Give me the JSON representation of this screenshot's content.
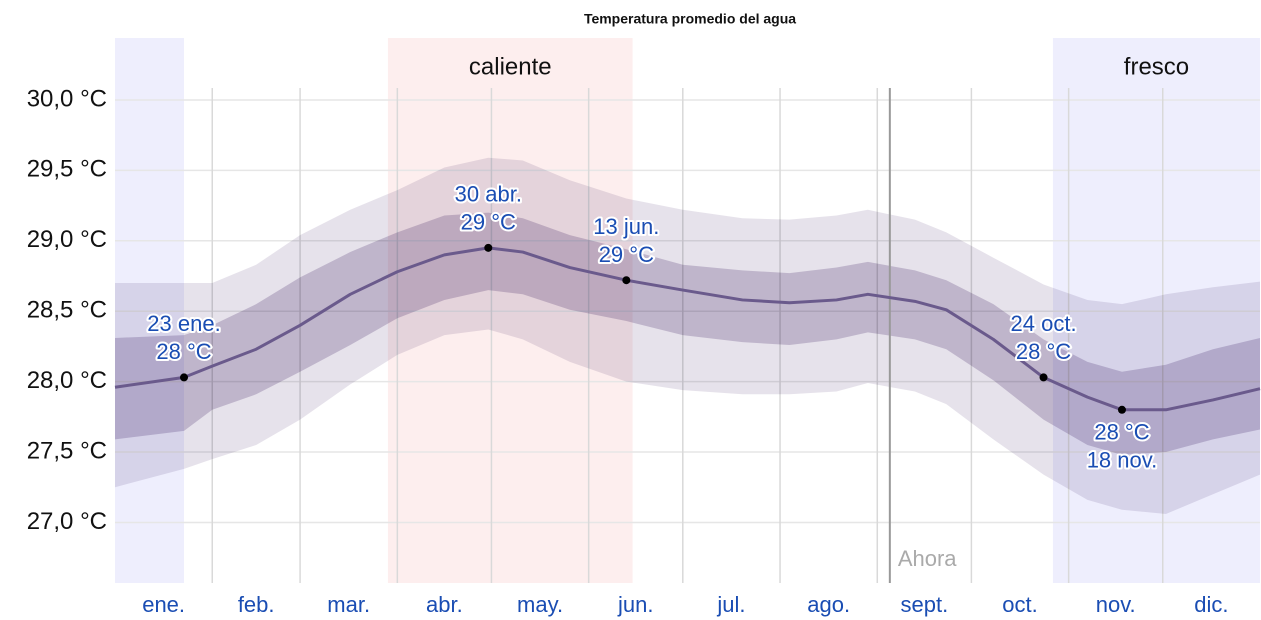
{
  "chart_data": {
    "type": "line",
    "title": "Temperatura promedio del agua",
    "xlim": [
      0,
      365
    ],
    "ylim": [
      26.57,
      30.44
    ],
    "yticks": [
      {
        "value": 27,
        "label": "27,0 °C"
      },
      {
        "value": 27.5,
        "label": "27,5 °C"
      },
      {
        "value": 28,
        "label": "28,0 °C"
      },
      {
        "value": 28.5,
        "label": "28,5 °C"
      },
      {
        "value": 29,
        "label": "29,0 °C"
      },
      {
        "value": 29.5,
        "label": "29,5 °C"
      },
      {
        "value": 30,
        "label": "30,0 °C"
      }
    ],
    "grid": true,
    "months": [
      "ene.",
      "feb.",
      "mar.",
      "abr.",
      "may.",
      "jun.",
      "jul.",
      "ago.",
      "sept.",
      "oct.",
      "nov.",
      "dic."
    ],
    "month_starts": [
      0,
      31,
      59,
      90,
      120,
      151,
      181,
      212,
      243,
      273,
      304,
      334
    ],
    "seasons": [
      {
        "label": "caliente",
        "ranges": [
          [
            87,
            165
          ]
        ],
        "color": "#fdeeee"
      },
      {
        "label": "fresco",
        "ranges": [
          [
            0,
            22
          ],
          [
            299,
            365
          ]
        ],
        "color": "#eeeefd"
      }
    ],
    "now": {
      "label": "Ahora",
      "x": 247,
      "color": "#aaaaaa"
    },
    "x": [
      0,
      22,
      31,
      45,
      59,
      75,
      90,
      105,
      119,
      130,
      145,
      163,
      181,
      200,
      215,
      230,
      240,
      255,
      265,
      280,
      296,
      310,
      321,
      335,
      350,
      365
    ],
    "bands": [
      {
        "color": "#d6cfde",
        "upper": [
          28.7,
          28.7,
          28.7,
          28.83,
          29.04,
          29.22,
          29.36,
          29.52,
          29.59,
          29.57,
          29.43,
          29.3,
          29.22,
          29.16,
          29.15,
          29.18,
          29.22,
          29.15,
          29.06,
          28.88,
          28.69,
          28.58,
          28.55,
          28.62,
          28.67,
          28.71
        ],
        "lower": [
          27.25,
          27.38,
          27.45,
          27.55,
          27.73,
          27.98,
          28.19,
          28.33,
          28.37,
          28.3,
          28.14,
          28.0,
          27.94,
          27.91,
          27.91,
          27.93,
          27.99,
          27.93,
          27.84,
          27.59,
          27.34,
          27.16,
          27.09,
          27.06,
          27.2,
          27.34
        ]
      },
      {
        "color": "#b7aac7",
        "upper": [
          28.31,
          28.33,
          28.4,
          28.55,
          28.74,
          28.92,
          29.06,
          29.18,
          29.2,
          29.16,
          29.04,
          28.94,
          28.83,
          28.79,
          28.77,
          28.81,
          28.85,
          28.79,
          28.72,
          28.55,
          28.3,
          28.14,
          28.07,
          28.12,
          28.23,
          28.31
        ],
        "lower": [
          27.59,
          27.65,
          27.8,
          27.91,
          28.07,
          28.26,
          28.45,
          28.58,
          28.65,
          28.62,
          28.51,
          28.43,
          28.33,
          28.28,
          28.26,
          28.3,
          28.35,
          28.3,
          28.23,
          28.01,
          27.73,
          27.55,
          27.48,
          27.5,
          27.59,
          27.66
        ]
      }
    ],
    "series": [
      {
        "color": "#6a5a8c",
        "values": [
          27.96,
          28.03,
          28.11,
          28.23,
          28.4,
          28.62,
          28.78,
          28.9,
          28.95,
          28.92,
          28.81,
          28.72,
          28.65,
          28.58,
          28.56,
          28.58,
          28.62,
          28.57,
          28.51,
          28.3,
          28.03,
          27.89,
          27.8,
          27.8,
          27.87,
          27.95
        ]
      }
    ],
    "annotations": [
      {
        "x": 22,
        "value": 28.03,
        "date": "23 ene.",
        "label": "28 °C",
        "position": "above"
      },
      {
        "x": 119,
        "value": 28.95,
        "date": "30 abr.",
        "label": "29 °C",
        "position": "above"
      },
      {
        "x": 163,
        "value": 28.72,
        "date": "13 jun.",
        "label": "29 °C",
        "position": "above"
      },
      {
        "x": 296,
        "value": 28.03,
        "date": "24 oct.",
        "label": "28 °C",
        "position": "above"
      },
      {
        "x": 321,
        "value": 27.8,
        "date": "18 nov.",
        "label": "28 °C",
        "position": "below"
      }
    ],
    "text_color": "#1a4db3"
  }
}
